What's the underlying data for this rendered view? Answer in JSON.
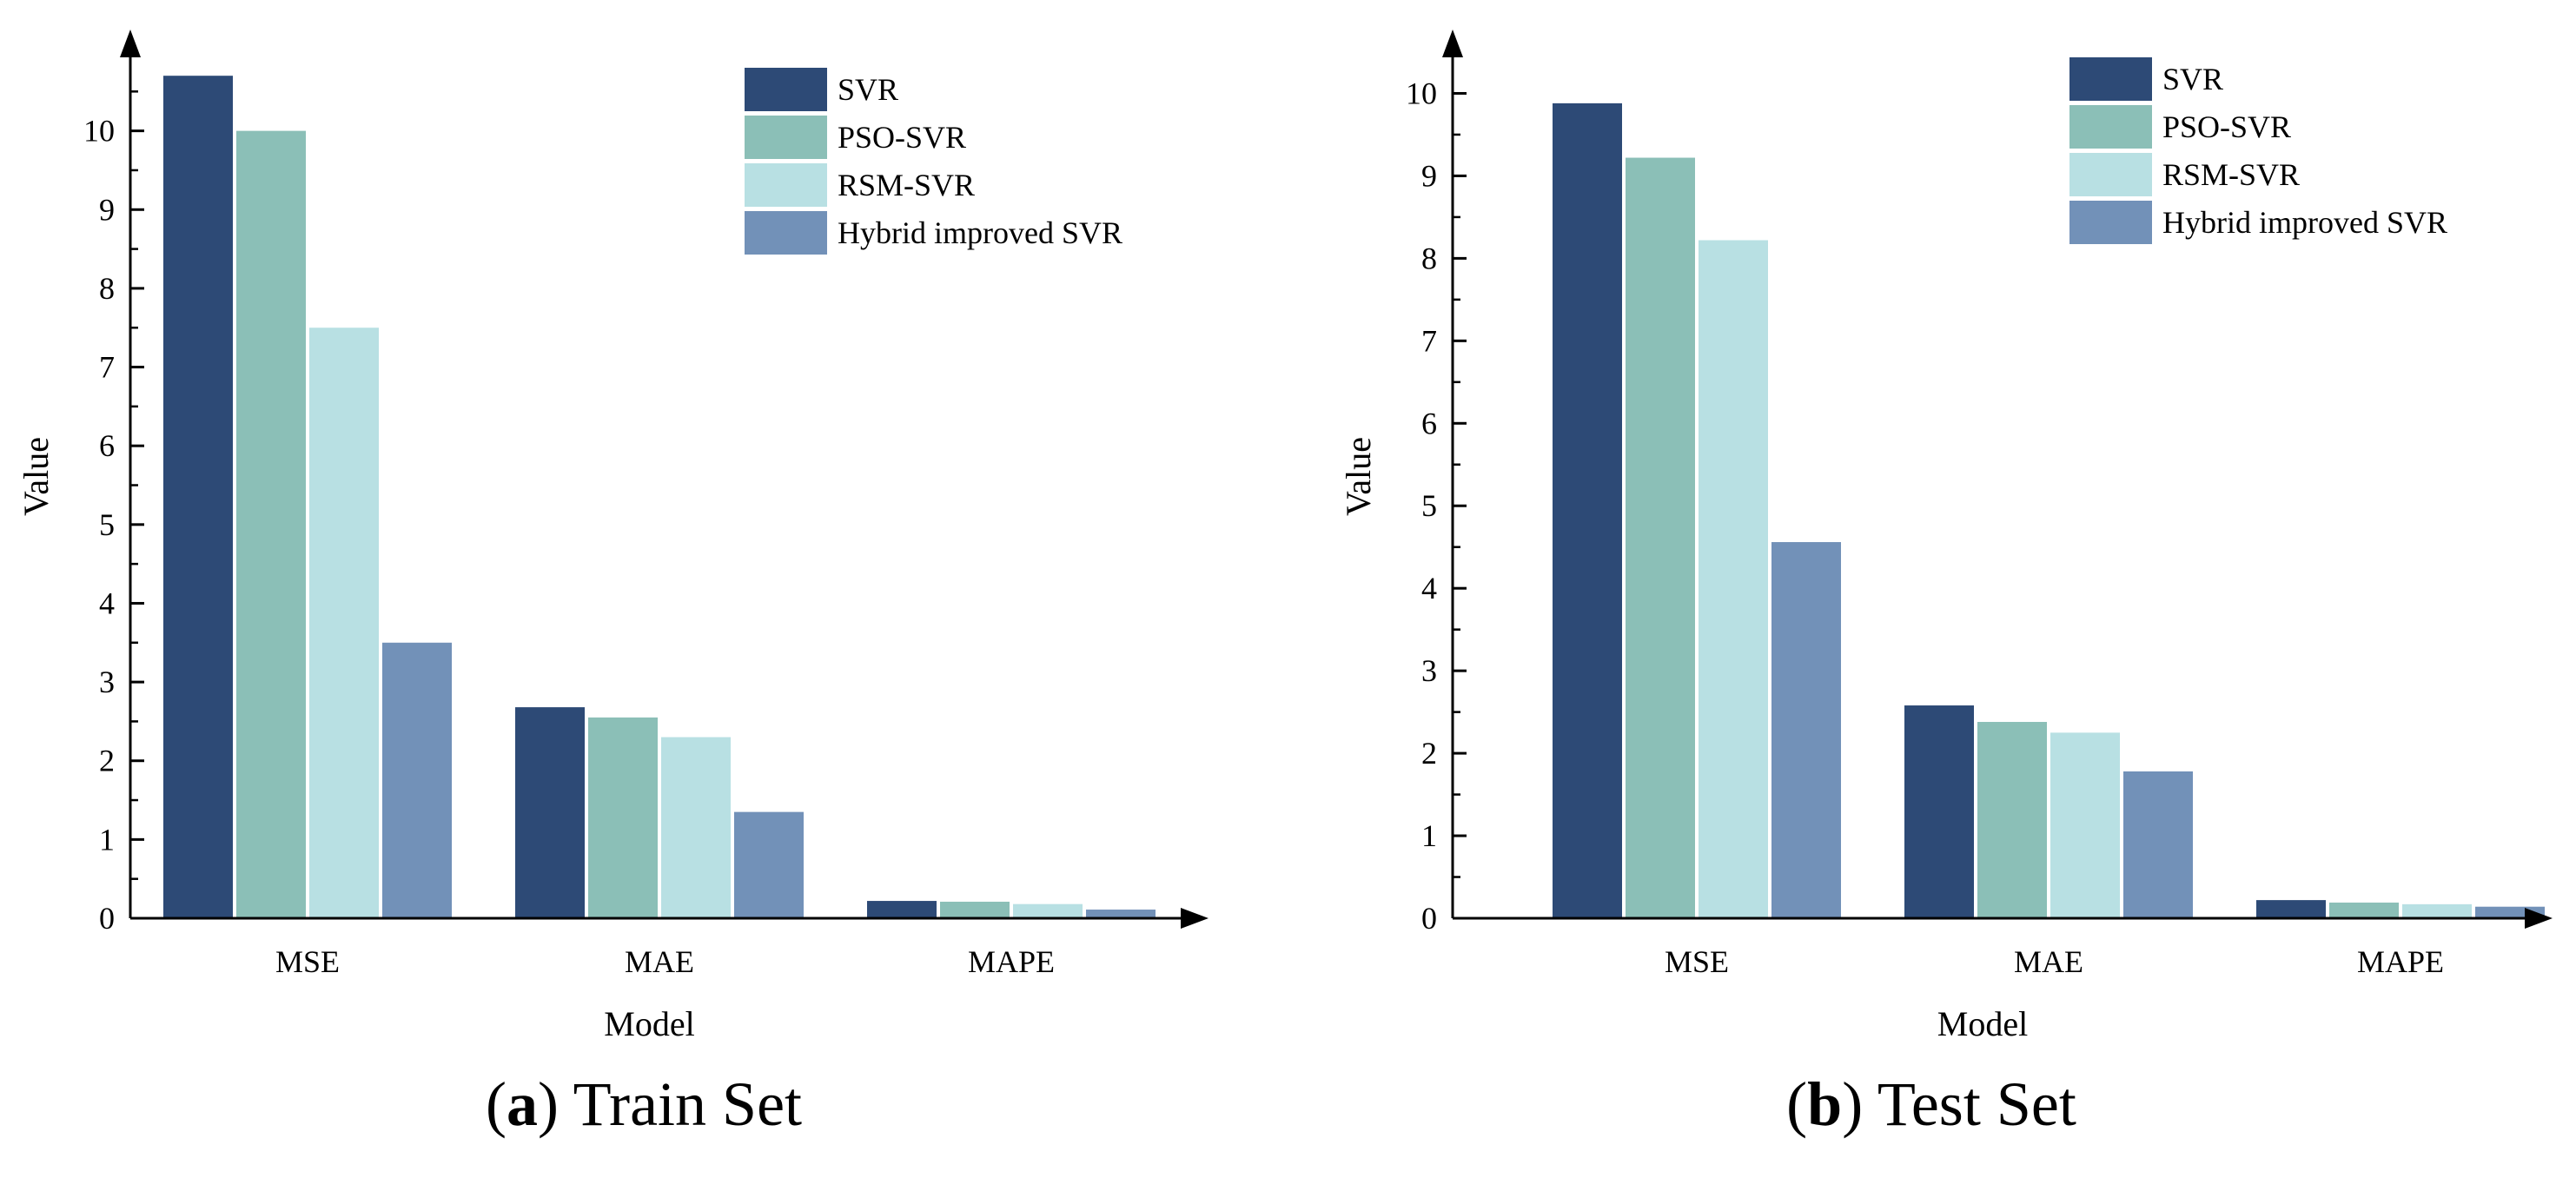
{
  "chart_data": [
    {
      "type": "bar",
      "panel_letter": "a",
      "title": "Train Set",
      "xlabel": "Model",
      "ylabel": "Value",
      "categories": [
        "MSE",
        "MAE",
        "MAPE"
      ],
      "ylim": [
        0,
        11
      ],
      "yticks": [
        0,
        1,
        2,
        3,
        4,
        5,
        6,
        7,
        8,
        9,
        10
      ],
      "legend_position": "top-right",
      "series": [
        {
          "name": "SVR",
          "color": "#2d4a76",
          "values": [
            10.7,
            2.68,
            0.22
          ]
        },
        {
          "name": "PSO-SVR",
          "color": "#8bbfb7",
          "values": [
            10.0,
            2.55,
            0.21
          ]
        },
        {
          "name": "RSM-SVR",
          "color": "#b8e0e3",
          "values": [
            7.5,
            2.3,
            0.18
          ]
        },
        {
          "name": "Hybrid improved SVR",
          "color": "#7291b8",
          "values": [
            3.5,
            1.35,
            0.11
          ]
        }
      ]
    },
    {
      "type": "bar",
      "panel_letter": "b",
      "title": "Test Set",
      "xlabel": "Model",
      "ylabel": "Value",
      "categories": [
        "MSE",
        "MAE",
        "MAPE"
      ],
      "ylim": [
        0,
        10.5
      ],
      "yticks": [
        0,
        1,
        2,
        3,
        4,
        5,
        6,
        7,
        8,
        9,
        10
      ],
      "legend_position": "top-right",
      "series": [
        {
          "name": "SVR",
          "color": "#2d4a76",
          "values": [
            9.88,
            2.58,
            0.22
          ]
        },
        {
          "name": "PSO-SVR",
          "color": "#8bbfb7",
          "values": [
            9.22,
            2.38,
            0.19
          ]
        },
        {
          "name": "RSM-SVR",
          "color": "#b8e0e3",
          "values": [
            8.22,
            2.25,
            0.17
          ]
        },
        {
          "name": "Hybrid improved SVR",
          "color": "#7291b8",
          "values": [
            4.56,
            1.78,
            0.14
          ]
        }
      ]
    }
  ]
}
